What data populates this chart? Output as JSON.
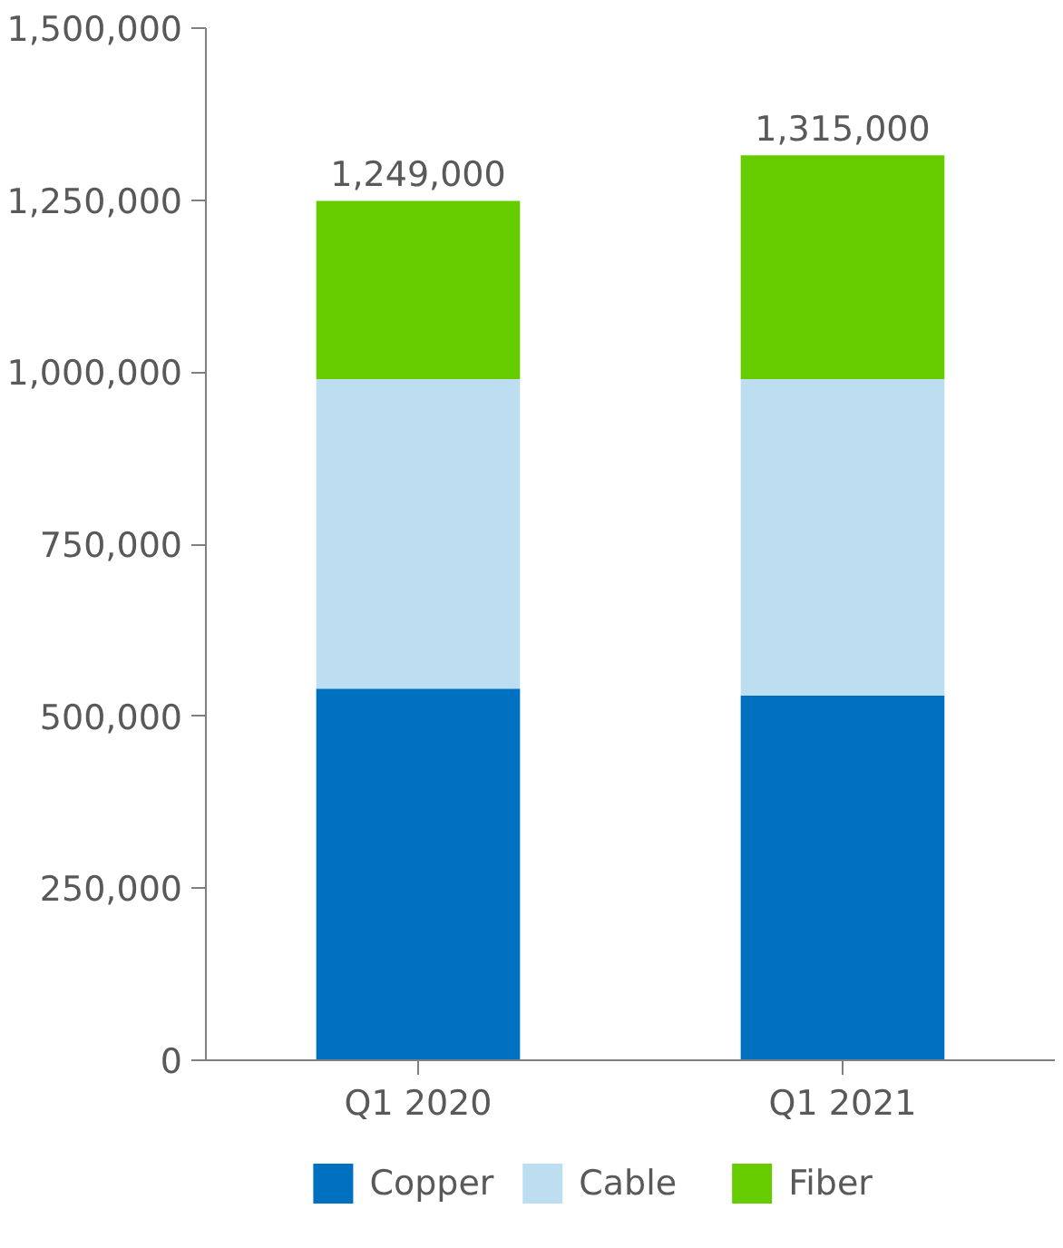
{
  "chart_data": {
    "type": "bar",
    "stacked": true,
    "categories": [
      "Q1 2020",
      "Q1 2021"
    ],
    "series": [
      {
        "name": "Copper",
        "color": "#0070c0",
        "values": [
          540000,
          530000
        ]
      },
      {
        "name": "Cable",
        "color": "#bdddf1",
        "values": [
          450000,
          460000
        ]
      },
      {
        "name": "Fiber",
        "color": "#66cc00",
        "values": [
          259000,
          325000
        ]
      }
    ],
    "totals": [
      "1,249,000",
      "1,315,000"
    ],
    "ylim": [
      0,
      1500000
    ],
    "yticks": [
      {
        "value": 0,
        "label": "0"
      },
      {
        "value": 250000,
        "label": "250,000"
      },
      {
        "value": 500000,
        "label": "500,000"
      },
      {
        "value": 750000,
        "label": "750,000"
      },
      {
        "value": 1000000,
        "label": "1,000,000"
      },
      {
        "value": 1250000,
        "label": "1,250,000"
      },
      {
        "value": 1500000,
        "label": "1,500,000"
      }
    ],
    "grid": false,
    "legend": "bottom"
  }
}
